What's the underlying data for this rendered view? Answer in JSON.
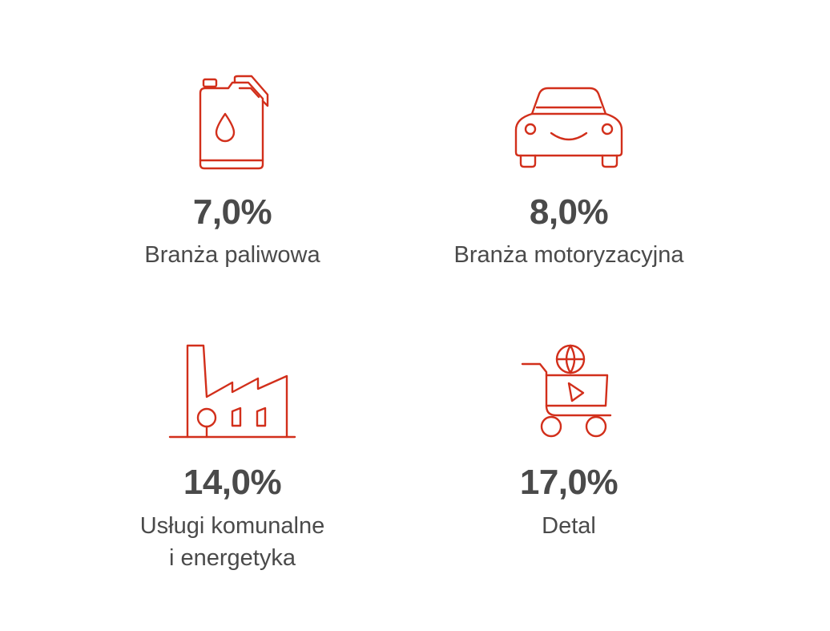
{
  "accent_color": "#d22f1b",
  "text_color": "#4a4a4a",
  "stats": [
    {
      "icon": "fuel-canister-icon",
      "value": "7,0%",
      "label_lines": [
        "Branża paliwowa"
      ]
    },
    {
      "icon": "car-icon",
      "value": "8,0%",
      "label_lines": [
        "Branża motoryzacyjna"
      ]
    },
    {
      "icon": "factory-icon",
      "value": "14,0%",
      "label_lines": [
        "Usługi komunalne",
        "i energetyka"
      ]
    },
    {
      "icon": "shopping-cart-icon",
      "value": "17,0%",
      "label_lines": [
        "Detal"
      ]
    }
  ]
}
